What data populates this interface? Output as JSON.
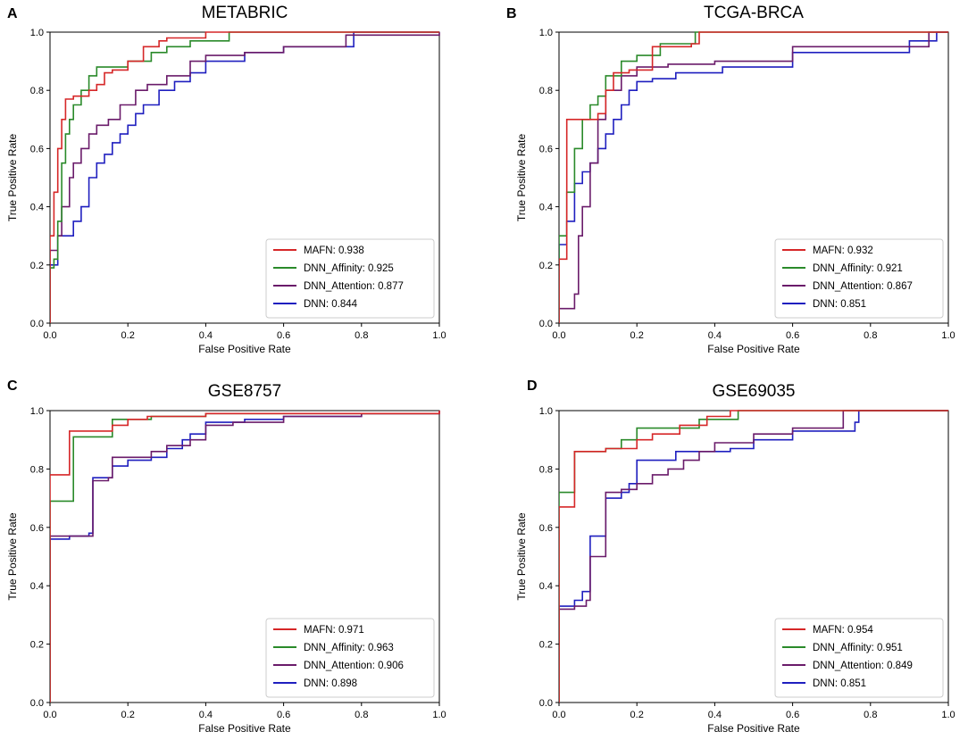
{
  "figure": {
    "panels": [
      {
        "letter": "A",
        "title": "METABRIC"
      },
      {
        "letter": "B",
        "title": "TCGA-BRCA"
      },
      {
        "letter": "C",
        "title": "GSE8757"
      },
      {
        "letter": "D",
        "title": "GSE69035"
      }
    ]
  },
  "colors": {
    "MAFN": "#d62728",
    "DNN_Affinity": "#2a8a2a",
    "DNN_Attention": "#6a1b6a",
    "DNN": "#1f1fbf"
  },
  "chart_data": [
    {
      "type": "line",
      "title": "METABRIC",
      "xlabel": "False Positive Rate",
      "ylabel": "True Positive Rate",
      "xlim": [
        0,
        1
      ],
      "ylim": [
        0,
        1
      ],
      "xticks": [
        "0.0",
        "0.2",
        "0.4",
        "0.6",
        "0.8",
        "1.0"
      ],
      "yticks": [
        "0.0",
        "0.2",
        "0.4",
        "0.6",
        "0.8",
        "1.0"
      ],
      "legend_position": "bottom-right",
      "series": [
        {
          "name": "MAFN",
          "label": "MAFN: 0.938",
          "x": [
            0,
            0,
            0.01,
            0.01,
            0.02,
            0.02,
            0.03,
            0.04,
            0.05,
            0.06,
            0.08,
            0.1,
            0.12,
            0.14,
            0.16,
            0.2,
            0.24,
            0.28,
            0.3,
            0.36,
            0.4,
            1.0
          ],
          "y": [
            0,
            0.3,
            0.4,
            0.45,
            0.5,
            0.6,
            0.7,
            0.77,
            0.77,
            0.78,
            0.78,
            0.8,
            0.82,
            0.86,
            0.87,
            0.9,
            0.95,
            0.97,
            0.98,
            0.98,
            1.0,
            1.0
          ]
        },
        {
          "name": "DNN_Affinity",
          "label": "DNN_Affinity: 0.925",
          "x": [
            0,
            0,
            0.01,
            0.02,
            0.03,
            0.04,
            0.05,
            0.06,
            0.08,
            0.1,
            0.12,
            0.15,
            0.2,
            0.26,
            0.3,
            0.36,
            0.46,
            1.0
          ],
          "y": [
            0,
            0.19,
            0.22,
            0.35,
            0.55,
            0.65,
            0.7,
            0.75,
            0.8,
            0.85,
            0.88,
            0.88,
            0.9,
            0.93,
            0.95,
            0.97,
            1.0,
            1.0
          ]
        },
        {
          "name": "DNN_Attention",
          "label": "DNN_Attention: 0.877",
          "x": [
            0,
            0,
            0.02,
            0.03,
            0.05,
            0.06,
            0.08,
            0.1,
            0.12,
            0.15,
            0.18,
            0.22,
            0.25,
            0.3,
            0.36,
            0.4,
            0.5,
            0.6,
            0.76,
            1.0
          ],
          "y": [
            0,
            0.25,
            0.3,
            0.4,
            0.5,
            0.55,
            0.6,
            0.65,
            0.68,
            0.7,
            0.75,
            0.8,
            0.82,
            0.85,
            0.9,
            0.92,
            0.93,
            0.95,
            0.99,
            1.0
          ]
        },
        {
          "name": "DNN",
          "label": "DNN: 0.844",
          "x": [
            0,
            0,
            0.02,
            0.04,
            0.06,
            0.08,
            0.1,
            0.12,
            0.14,
            0.16,
            0.18,
            0.2,
            0.22,
            0.24,
            0.28,
            0.32,
            0.36,
            0.4,
            0.5,
            0.6,
            0.78,
            1.0
          ],
          "y": [
            0,
            0.2,
            0.3,
            0.3,
            0.35,
            0.4,
            0.5,
            0.55,
            0.58,
            0.62,
            0.65,
            0.68,
            0.72,
            0.75,
            0.8,
            0.83,
            0.86,
            0.9,
            0.93,
            0.95,
            1.0,
            1.0
          ]
        }
      ]
    },
    {
      "type": "line",
      "title": "TCGA-BRCA",
      "xlabel": "False Positive Rate",
      "ylabel": "True Positive Rate",
      "xlim": [
        0,
        1
      ],
      "ylim": [
        0,
        1
      ],
      "xticks": [
        "0.0",
        "0.2",
        "0.4",
        "0.6",
        "0.8",
        "1.0"
      ],
      "yticks": [
        "0.0",
        "0.2",
        "0.4",
        "0.6",
        "0.8",
        "1.0"
      ],
      "legend_position": "bottom-right",
      "series": [
        {
          "name": "MAFN",
          "label": "MAFN: 0.932",
          "x": [
            0,
            0,
            0.02,
            0.02,
            0.04,
            0.06,
            0.08,
            0.1,
            0.12,
            0.14,
            0.18,
            0.24,
            0.3,
            0.34,
            0.36,
            1.0
          ],
          "y": [
            0,
            0.22,
            0.22,
            0.7,
            0.7,
            0.7,
            0.7,
            0.72,
            0.8,
            0.86,
            0.87,
            0.95,
            0.95,
            0.96,
            1.0,
            1.0
          ]
        },
        {
          "name": "DNN_Affinity",
          "label": "DNN_Affinity: 0.921",
          "x": [
            0,
            0,
            0.02,
            0.04,
            0.06,
            0.08,
            0.1,
            0.12,
            0.16,
            0.2,
            0.26,
            0.35,
            1.0
          ],
          "y": [
            0,
            0.3,
            0.45,
            0.6,
            0.7,
            0.75,
            0.78,
            0.85,
            0.9,
            0.92,
            0.96,
            1.0,
            1.0
          ]
        },
        {
          "name": "DNN_Attention",
          "label": "DNN_Attention: 0.867",
          "x": [
            0,
            0.02,
            0.04,
            0.05,
            0.06,
            0.08,
            0.1,
            0.12,
            0.16,
            0.2,
            0.28,
            0.4,
            0.6,
            0.85,
            0.95,
            1.0
          ],
          "y": [
            0.05,
            0.05,
            0.1,
            0.3,
            0.4,
            0.55,
            0.7,
            0.8,
            0.85,
            0.88,
            0.89,
            0.9,
            0.95,
            0.95,
            1.0,
            1.0
          ]
        },
        {
          "name": "DNN",
          "label": "DNN: 0.851",
          "x": [
            0,
            0,
            0.02,
            0.04,
            0.06,
            0.08,
            0.1,
            0.12,
            0.14,
            0.16,
            0.18,
            0.2,
            0.24,
            0.3,
            0.42,
            0.6,
            0.9,
            0.97,
            1.0
          ],
          "y": [
            0,
            0.27,
            0.35,
            0.48,
            0.52,
            0.55,
            0.6,
            0.65,
            0.7,
            0.75,
            0.8,
            0.83,
            0.84,
            0.86,
            0.88,
            0.93,
            0.97,
            1.0,
            1.0
          ]
        }
      ]
    },
    {
      "type": "line",
      "title": "GSE8757",
      "xlabel": "False Positive Rate",
      "ylabel": "True Positive Rate",
      "xlim": [
        0,
        1
      ],
      "ylim": [
        0,
        1
      ],
      "xticks": [
        "0.0",
        "0.2",
        "0.4",
        "0.6",
        "0.8",
        "1.0"
      ],
      "yticks": [
        "0.0",
        "0.2",
        "0.4",
        "0.6",
        "0.8",
        "1.0"
      ],
      "legend_position": "bottom-right",
      "series": [
        {
          "name": "MAFN",
          "label": "MAFN: 0.971",
          "x": [
            0,
            0,
            0.05,
            0.05,
            0.15,
            0.16,
            0.2,
            0.25,
            0.4,
            1.0
          ],
          "y": [
            0,
            0.78,
            0.78,
            0.93,
            0.93,
            0.95,
            0.97,
            0.98,
            0.99,
            1.0
          ]
        },
        {
          "name": "DNN_Affinity",
          "label": "DNN_Affinity: 0.963",
          "x": [
            0,
            0,
            0.05,
            0.06,
            0.16,
            0.16,
            0.26,
            0.4,
            1.0
          ],
          "y": [
            0,
            0.69,
            0.69,
            0.91,
            0.92,
            0.97,
            0.98,
            0.99,
            0.99
          ]
        },
        {
          "name": "DNN_Attention",
          "label": "DNN_Attention: 0.906",
          "x": [
            0,
            0,
            0.1,
            0.11,
            0.15,
            0.16,
            0.2,
            0.26,
            0.3,
            0.36,
            0.4,
            0.47,
            0.6,
            0.8,
            1.0
          ],
          "y": [
            0,
            0.57,
            0.57,
            0.76,
            0.77,
            0.84,
            0.84,
            0.86,
            0.88,
            0.9,
            0.95,
            0.96,
            0.98,
            0.99,
            1.0
          ]
        },
        {
          "name": "DNN",
          "label": "DNN: 0.898",
          "x": [
            0,
            0,
            0.05,
            0.1,
            0.11,
            0.16,
            0.2,
            0.26,
            0.3,
            0.34,
            0.36,
            0.4,
            0.5,
            0.6,
            0.8,
            1.0
          ],
          "y": [
            0,
            0.56,
            0.57,
            0.58,
            0.77,
            0.81,
            0.83,
            0.84,
            0.87,
            0.9,
            0.92,
            0.96,
            0.97,
            0.98,
            0.99,
            1.0
          ]
        }
      ]
    },
    {
      "type": "line",
      "title": "GSE69035",
      "xlabel": "False Positive Rate",
      "ylabel": "True Positive Rate",
      "xlim": [
        0,
        1
      ],
      "ylim": [
        0,
        1
      ],
      "xticks": [
        "0.0",
        "0.2",
        "0.4",
        "0.6",
        "0.8",
        "1.0"
      ],
      "yticks": [
        "0.0",
        "0.2",
        "0.4",
        "0.6",
        "0.8",
        "1.0"
      ],
      "legend_position": "bottom-right",
      "series": [
        {
          "name": "MAFN",
          "label": "MAFN: 0.954",
          "x": [
            0,
            0,
            0.04,
            0.04,
            0.08,
            0.12,
            0.2,
            0.24,
            0.31,
            0.38,
            0.44,
            1.0
          ],
          "y": [
            0,
            0.67,
            0.67,
            0.86,
            0.86,
            0.87,
            0.9,
            0.92,
            0.95,
            0.98,
            1.0,
            1.0
          ]
        },
        {
          "name": "DNN_Affinity",
          "label": "DNN_Affinity: 0.951",
          "x": [
            0,
            0,
            0.04,
            0.04,
            0.12,
            0.16,
            0.2,
            0.26,
            0.36,
            0.46,
            1.0
          ],
          "y": [
            0,
            0.72,
            0.72,
            0.86,
            0.87,
            0.9,
            0.94,
            0.94,
            0.97,
            1.0,
            1.0
          ]
        },
        {
          "name": "DNN_Attention",
          "label": "DNN_Attention: 0.849",
          "x": [
            0,
            0,
            0.04,
            0.07,
            0.08,
            0.12,
            0.16,
            0.2,
            0.24,
            0.28,
            0.32,
            0.36,
            0.4,
            0.5,
            0.6,
            0.73,
            1.0
          ],
          "y": [
            0,
            0.32,
            0.33,
            0.35,
            0.5,
            0.72,
            0.73,
            0.75,
            0.78,
            0.8,
            0.83,
            0.86,
            0.89,
            0.92,
            0.94,
            1.0,
            1.0
          ]
        },
        {
          "name": "DNN",
          "label": "DNN: 0.851",
          "x": [
            0,
            0,
            0.04,
            0.06,
            0.08,
            0.12,
            0.16,
            0.18,
            0.2,
            0.24,
            0.3,
            0.36,
            0.44,
            0.5,
            0.6,
            0.76,
            0.77,
            1.0
          ],
          "y": [
            0,
            0.33,
            0.35,
            0.38,
            0.57,
            0.7,
            0.72,
            0.75,
            0.83,
            0.83,
            0.86,
            0.86,
            0.87,
            0.9,
            0.93,
            0.96,
            1.0,
            1.0
          ]
        }
      ]
    }
  ]
}
